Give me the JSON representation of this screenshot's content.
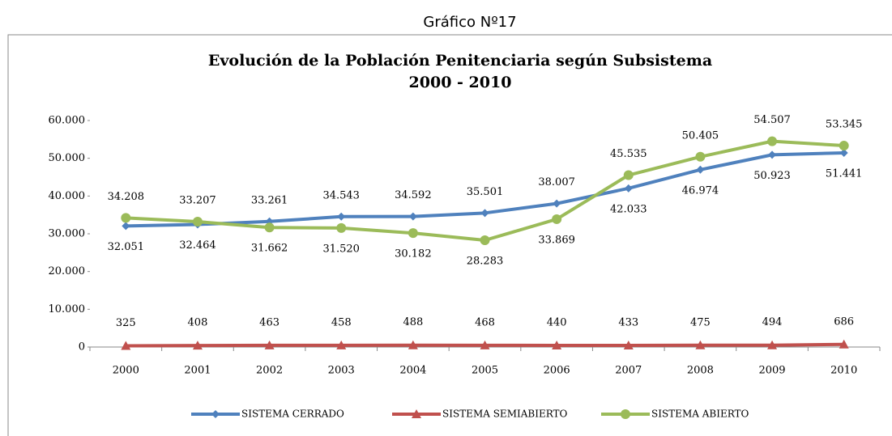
{
  "caption": "Gráfico Nº17",
  "chart_data": {
    "type": "line",
    "title": "Evolución de la Población Penitenciaria según Subsistema",
    "subtitle": "2000 - 2010",
    "categories": [
      "2000",
      "2001",
      "2002",
      "2003",
      "2004",
      "2005",
      "2006",
      "2007",
      "2008",
      "2009",
      "2010"
    ],
    "series": [
      {
        "name": "SISTEMA CERRADO",
        "color": "#4f81bd",
        "label_color": "#1ab0e6",
        "marker": "diamond",
        "values": [
          32051,
          32464,
          33261,
          34543,
          34592,
          35501,
          38007,
          42033,
          46974,
          50923,
          51441
        ],
        "value_labels": [
          "32.051",
          "32.464",
          "33.261",
          "34.543",
          "34.592",
          "35.501",
          "38.007",
          "42.033",
          "46.974",
          "50.923",
          "51.441"
        ]
      },
      {
        "name": "SISTEMA SEMIABIERTO",
        "color": "#c0504d",
        "label_color": "#c0282e",
        "marker": "triangle",
        "values": [
          325,
          408,
          463,
          458,
          488,
          468,
          440,
          433,
          475,
          494,
          686
        ]
      },
      {
        "name": "SISTEMA ABIERTO",
        "color": "#9bbb59",
        "label_color": "#8fb34a",
        "marker": "circle",
        "values": [
          34208,
          33207,
          31662,
          31520,
          30182,
          28283,
          33869,
          45535,
          50405,
          54507,
          53345
        ],
        "value_labels": [
          "34.208",
          "33.207",
          "31.662",
          "31.520",
          "30.182",
          "28.283",
          "33.869",
          "45.535",
          "50.405",
          "54.507",
          "53.345"
        ]
      }
    ],
    "ylim": [
      0,
      60000
    ],
    "yticks": [
      0,
      {
        "value": 10000,
        "label": "10.000"
      },
      {
        "value": 20000,
        "label": "20.000"
      },
      {
        "value": 30000,
        "label": "30.000"
      },
      {
        "value": 40000,
        "label": "40.000"
      },
      {
        "value": 50000,
        "label": "50.000"
      },
      {
        "value": 60000,
        "label": "60.000"
      }
    ],
    "grid": false,
    "legend": "bottom"
  }
}
